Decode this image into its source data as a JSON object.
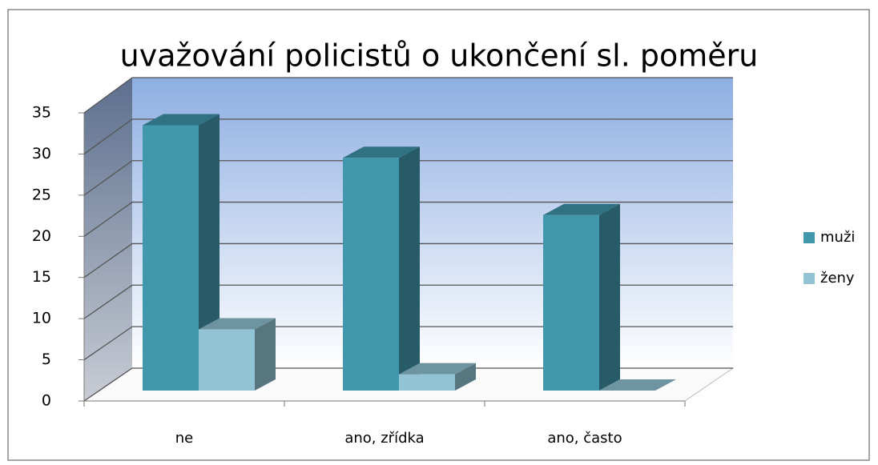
{
  "chart_data": {
    "type": "bar3d",
    "title": "uvažování  policistů o ukončení sl. poměru",
    "categories": [
      "ne",
      "ano, zřídka",
      "ano, často"
    ],
    "series": [
      {
        "name": "muži",
        "color": "#4198ad",
        "values": [
          32.5,
          28.5,
          21.5
        ]
      },
      {
        "name": "ženy",
        "color": "#93c4d6",
        "values": [
          7.5,
          2,
          0
        ]
      }
    ],
    "ylim": [
      0,
      35
    ],
    "yticks": [
      0,
      5,
      10,
      15,
      20,
      25,
      30,
      35
    ],
    "grid": true,
    "legend": "right"
  }
}
